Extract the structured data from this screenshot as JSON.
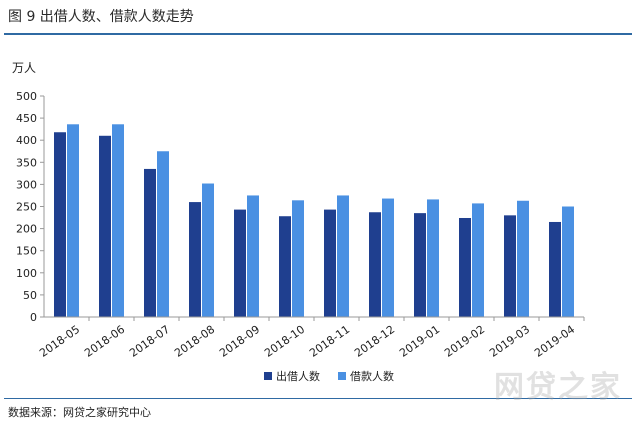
{
  "figure": {
    "title": "图 9   出借人数、借款人数走势",
    "source": "数据来源：网贷之家研究中心",
    "watermark": "网贷之家"
  },
  "chart_data": {
    "type": "bar",
    "ylabel": "万人",
    "ylim": [
      0,
      500
    ],
    "yticks": [
      0,
      50,
      100,
      150,
      200,
      250,
      300,
      350,
      400,
      450,
      500
    ],
    "grid": false,
    "legend_position": "bottom",
    "categories": [
      "2018-05",
      "2018-06",
      "2018-07",
      "2018-08",
      "2018-09",
      "2018-10",
      "2018-11",
      "2018-12",
      "2019-01",
      "2019-02",
      "2019-03",
      "2019-04"
    ],
    "series": [
      {
        "name": "出借人数",
        "color": "#1f3f8f",
        "values": [
          418,
          410,
          335,
          260,
          243,
          228,
          243,
          237,
          235,
          224,
          230,
          215
        ]
      },
      {
        "name": "借款人数",
        "color": "#4a90e2",
        "values": [
          436,
          436,
          375,
          302,
          275,
          264,
          275,
          268,
          266,
          257,
          263,
          250
        ]
      }
    ]
  }
}
